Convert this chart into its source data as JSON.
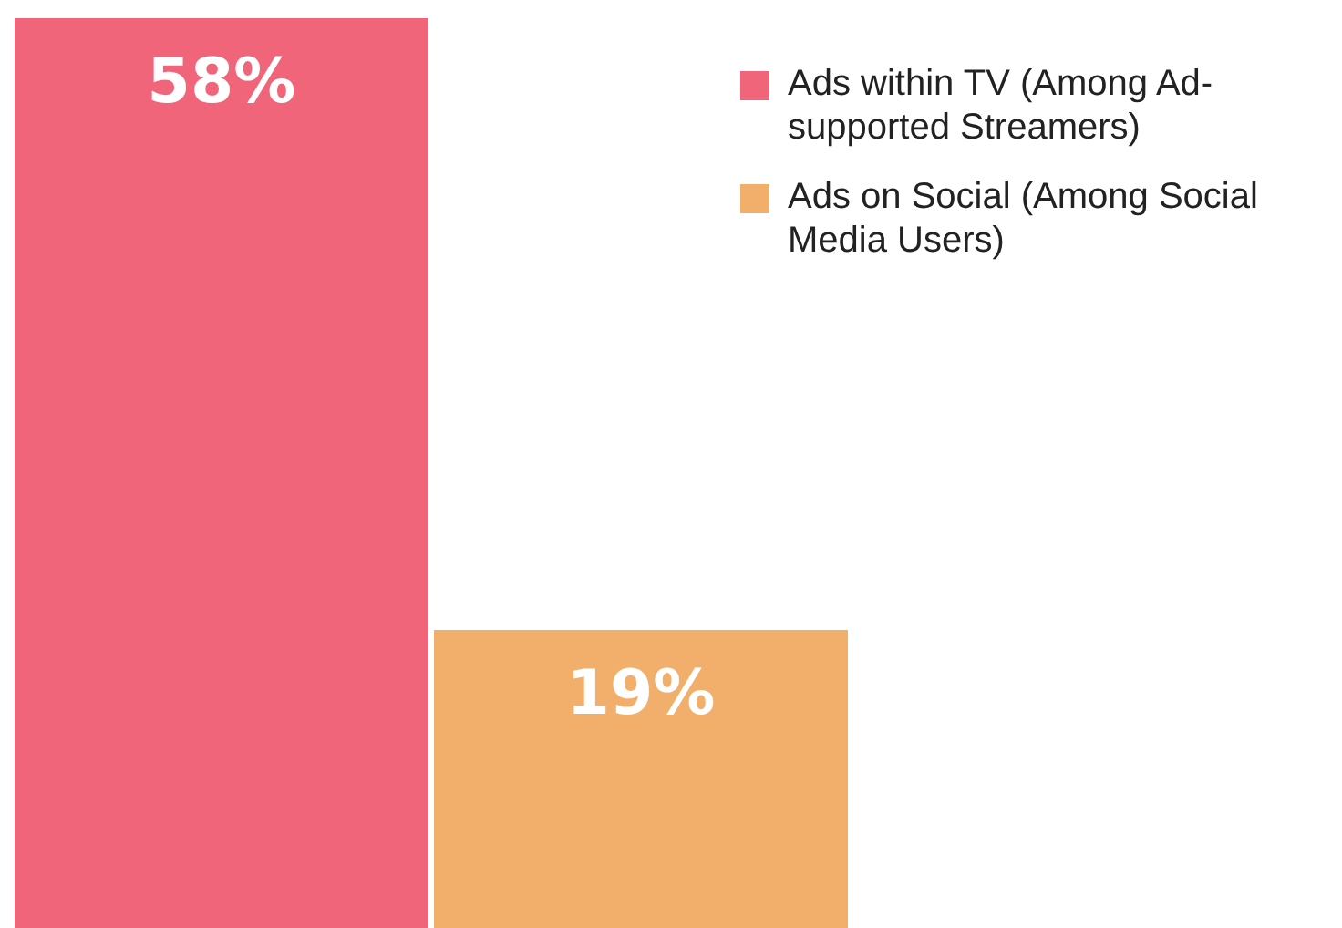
{
  "chart_data": {
    "type": "bar",
    "categories": [
      null
    ],
    "series": [
      {
        "name": "Ads within TV (Among Ad-supported Streamers)",
        "color": "#f0657a",
        "values": [
          58
        ],
        "value_labels": [
          "58%"
        ]
      },
      {
        "name": "Ads on Social (Among Social Media Users)",
        "color": "#f2ae6b",
        "values": [
          19
        ],
        "value_labels": [
          "19%"
        ]
      }
    ],
    "legend": "top right"
  }
}
